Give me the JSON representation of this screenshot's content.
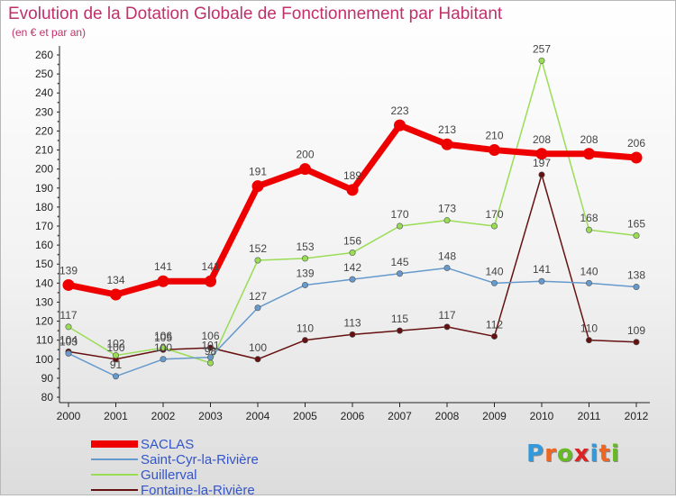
{
  "chart_data": {
    "type": "line",
    "title": "Evolution de la Dotation Globale de Fonctionnement par Habitant",
    "subtitle": "(en € et par an)",
    "categories": [
      "2000",
      "2001",
      "2002",
      "2003",
      "2004",
      "2005",
      "2006",
      "2007",
      "2008",
      "2009",
      "2010",
      "2011",
      "2012"
    ],
    "ylim": [
      80,
      260
    ],
    "yticks": [
      "80",
      "90",
      "100",
      "110",
      "120",
      "130",
      "140",
      "150",
      "160",
      "170",
      "180",
      "190",
      "200",
      "210",
      "220",
      "230",
      "240",
      "250",
      "260"
    ],
    "grid": false,
    "legend_position": "bottom-left",
    "series": [
      {
        "name": "SACLAS",
        "color": "#ee0000",
        "values": [
          139,
          134,
          141,
          141,
          191,
          200,
          189,
          223,
          213,
          210,
          208,
          208,
          206
        ],
        "labels": [
          "139",
          "134",
          "141",
          "141",
          "191",
          "200",
          "189",
          "223",
          "213",
          "210",
          "208",
          "208",
          "206"
        ]
      },
      {
        "name": "Saint-Cyr-la-Rivière",
        "color": "#6699cc",
        "values": [
          103,
          91,
          100,
          101,
          127,
          139,
          142,
          145,
          148,
          140,
          141,
          140,
          138
        ],
        "labels": [
          "103",
          "91",
          "100",
          "101",
          "127",
          "139",
          "142",
          "145",
          "148",
          "140",
          "141",
          "140",
          "138"
        ]
      },
      {
        "name": "Guillerval",
        "color": "#99dd55",
        "values": [
          117,
          102,
          106,
          98,
          152,
          153,
          156,
          170,
          173,
          170,
          257,
          168,
          165
        ],
        "labels": [
          "117",
          "102",
          "106",
          "98",
          "152",
          "153",
          "156",
          "170",
          "173",
          "170",
          "257",
          "168",
          "165"
        ]
      },
      {
        "name": "Fontaine-la-Rivière",
        "color": "#661111",
        "values": [
          104,
          100,
          105,
          106,
          100,
          110,
          113,
          115,
          117,
          112,
          197,
          110,
          109
        ],
        "labels": [
          "104",
          "100",
          "105",
          "106",
          "100",
          "110",
          "113",
          "115",
          "117",
          "112",
          "197",
          "110",
          "109"
        ]
      }
    ]
  },
  "logo": {
    "letters": [
      "P",
      "r",
      "o",
      "x",
      "i",
      "t",
      "i"
    ],
    "colors": [
      "#3399dd",
      "#ee6622",
      "#66bb22",
      "#dd2222",
      "#3399dd",
      "#ee6622",
      "#66bb22"
    ]
  }
}
